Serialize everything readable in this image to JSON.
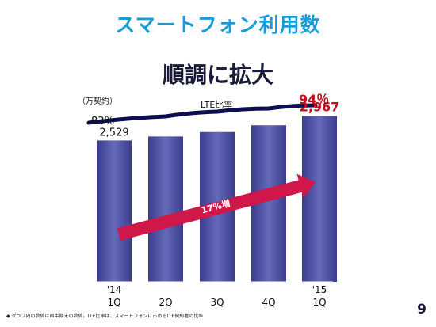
{
  "slide": {
    "title": "スマートフォン利用数",
    "subtitle": "順調に拡大",
    "footnote": "◆ グラフ内の数値は四半期末の数値。LTE比率は、スマートフォンに占めるLTE契約者の比率",
    "page_number": "9"
  },
  "colors": {
    "title": "#1a9bd7",
    "bar": "#4a4c9e",
    "line": "#0d0d50",
    "arrow": "#d0174a",
    "highlight_text": "#c0101e"
  },
  "chart_data": {
    "type": "bar",
    "unit_label": "（万契約）",
    "categories": [
      "'14\n1Q",
      "2Q",
      "3Q",
      "4Q",
      "'15\n1Q"
    ],
    "values": [
      2529,
      2600,
      2680,
      2800,
      2967
    ],
    "data_labels": [
      "2,529",
      "",
      "",
      "",
      "2,967"
    ],
    "ylim": [
      0,
      3200
    ],
    "lte_line": {
      "name": "LTE比率",
      "values": [
        83,
        87,
        90,
        92,
        94
      ],
      "start_label": "83％",
      "end_label": "94％"
    },
    "growth_arrow": {
      "label": "17%増"
    },
    "grid": false
  }
}
